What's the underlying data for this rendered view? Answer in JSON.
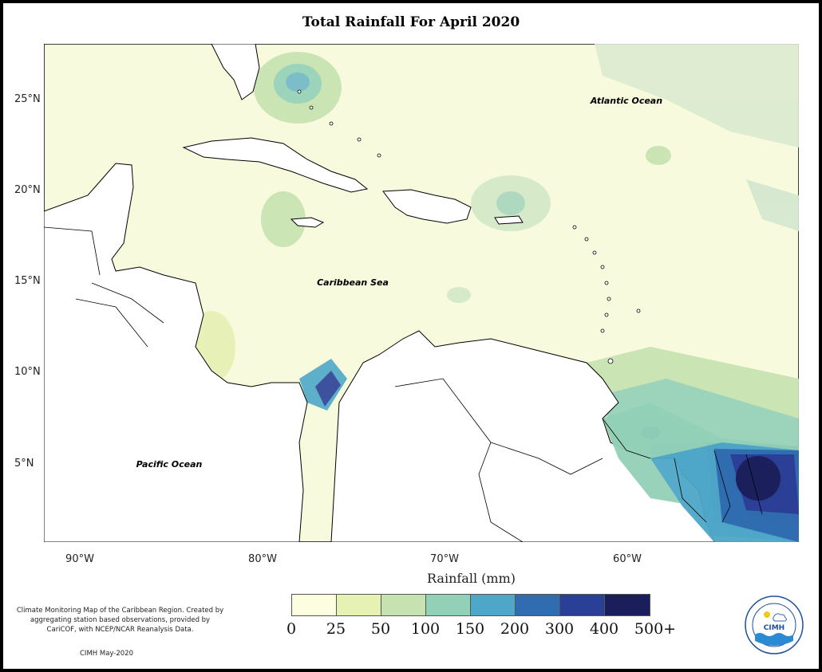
{
  "title": "Total Rainfall For April 2020",
  "map": {
    "labels": {
      "atlantic": "Atlantic Ocean",
      "caribbean": "Caribbean Sea",
      "pacific": "Pacific Ocean"
    },
    "lat_ticks": [
      "25°N",
      "20°N",
      "15°N",
      "10°N",
      "5°N"
    ],
    "lon_ticks": [
      "90°W",
      "80°W",
      "70°W",
      "60°W"
    ]
  },
  "legend": {
    "title": "Rainfall (mm)",
    "tick_labels": [
      "0",
      "25",
      "50",
      "100",
      "150",
      "200",
      "300",
      "400",
      "500+"
    ],
    "colors": [
      "#fdfde0",
      "#e6f1b4",
      "#c6e2b0",
      "#93d0b8",
      "#4ea7c8",
      "#2f6db0",
      "#2a3f96",
      "#1a1f5c"
    ]
  },
  "notes": {
    "description": "Climate Monitoring Map of the Caribbean Region. Created by aggregating station based observations, provided by CariCOF, with NCEP/NCAR Reanalysis Data.",
    "credit": "CIMH May-2020"
  },
  "logo": {
    "text": "CIMH"
  }
}
